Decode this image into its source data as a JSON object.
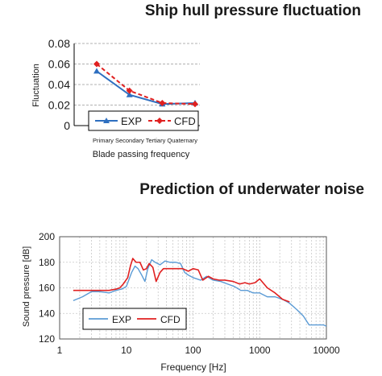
{
  "charts": {
    "top": {
      "title": "Ship hull pressure fluctuation",
      "ylabel": "Fluctuation",
      "xlabel": "Blade passing frequency",
      "yticks": [
        "0.08",
        "0.06",
        "0.04",
        "0.02",
        "0"
      ]
    },
    "bottom": {
      "title": "Prediction of underwater noise",
      "ylabel": "Sound pressure [dB]",
      "xlabel": "Frequency [Hz]",
      "yticks": [
        "200",
        "180",
        "160",
        "140",
        "120"
      ],
      "xticks": [
        "1",
        "10",
        "100",
        "1000",
        "10000"
      ]
    }
  },
  "colors": {
    "exp": "#2e6fc0",
    "cfd": "#e02020",
    "exp_light": "#5b9bd5",
    "grid": "#b0b0b0"
  },
  "chart_data": [
    {
      "type": "line",
      "title": "Ship hull pressure fluctuation",
      "xlabel": "Blade passing frequency",
      "ylabel": "Fluctuation",
      "categories": [
        "Primary",
        "Secondary",
        "Tertiary",
        "Quaternary"
      ],
      "series": [
        {
          "name": "EXP",
          "values": [
            0.053,
            0.03,
            0.021,
            0.022
          ]
        },
        {
          "name": "CFD",
          "values": [
            0.06,
            0.034,
            0.022,
            0.021
          ]
        }
      ],
      "ylim": [
        0,
        0.08
      ],
      "grid": true,
      "legend": "bottom"
    },
    {
      "type": "line",
      "title": "Prediction of underwater noise",
      "xlabel": "Frequency [Hz]",
      "ylabel": "Sound pressure [dB]",
      "xscale": "log",
      "xlim": [
        1,
        10000
      ],
      "ylim": [
        120,
        200
      ],
      "grid": true,
      "legend": "bottom-left",
      "series": [
        {
          "name": "EXP",
          "x": [
            1.6,
            2.2,
            3,
            4,
            5.5,
            7,
            8.5,
            10,
            12,
            13.5,
            15,
            17,
            19,
            21,
            24,
            27,
            32,
            38,
            45,
            55,
            65,
            75,
            85,
            100,
            130,
            160,
            200,
            260,
            330,
            420,
            520,
            650,
            800,
            1000,
            1300,
            1700,
            2200,
            2800,
            3600,
            4500,
            5500,
            7000,
            9000,
            10000
          ],
          "y": [
            150,
            153,
            157,
            157,
            156,
            158,
            159,
            161,
            172,
            177,
            175,
            170,
            165,
            175,
            182,
            180,
            178,
            181,
            180,
            180,
            179,
            172,
            170,
            168,
            166,
            169,
            166,
            165,
            163,
            161,
            158,
            158,
            156,
            156,
            153,
            153,
            151,
            148,
            143,
            138,
            131,
            131,
            131,
            130
          ]
        },
        {
          "name": "CFD",
          "x": [
            1.6,
            2.5,
            4,
            5.5,
            7,
            8,
            9,
            10.5,
            11.5,
            12.5,
            14,
            16,
            18,
            20,
            22,
            25,
            28,
            32,
            36,
            42,
            50,
            60,
            70,
            85,
            100,
            120,
            140,
            170,
            200,
            250,
            300,
            400,
            500,
            600,
            700,
            850,
            1000,
            1300,
            1700,
            2200,
            2800
          ],
          "y": [
            158,
            158,
            158,
            158,
            159,
            160,
            163,
            168,
            177,
            183,
            180,
            180,
            174,
            175,
            179,
            176,
            165,
            172,
            175,
            175,
            175,
            175,
            175,
            173,
            175,
            174,
            166,
            169,
            167,
            166,
            166,
            165,
            163,
            164,
            163,
            164,
            167,
            160,
            156,
            151,
            149
          ]
        }
      ]
    }
  ]
}
